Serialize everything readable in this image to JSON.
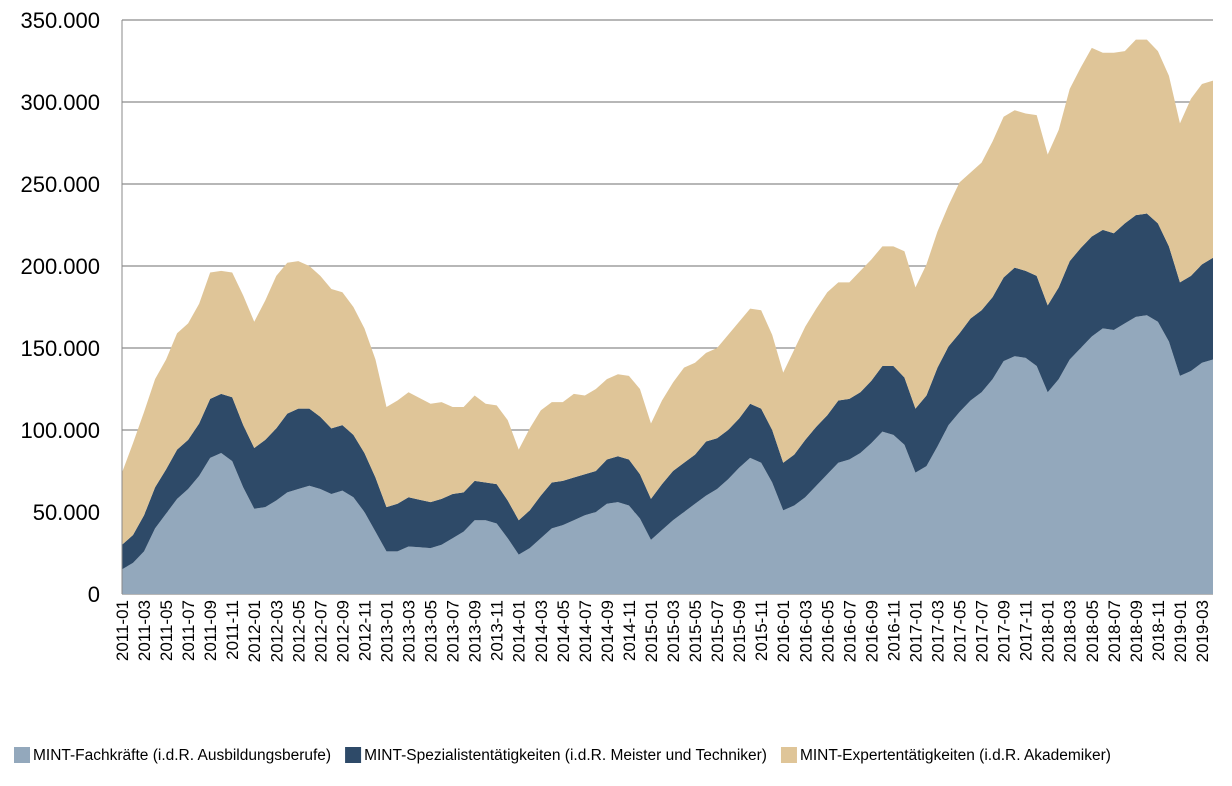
{
  "chart_data": {
    "type": "area",
    "stacked": true,
    "ylim": [
      0,
      350000
    ],
    "yticks": [
      0,
      50000,
      100000,
      150000,
      200000,
      250000,
      300000,
      350000
    ],
    "ytick_labels": [
      "0",
      "50.000",
      "100.000",
      "150.000",
      "200.000",
      "250.000",
      "300.000",
      "350.000"
    ],
    "grid": true,
    "legend": "bottom",
    "x": [
      "2011-01",
      "2011-02",
      "2011-03",
      "2011-04",
      "2011-05",
      "2011-06",
      "2011-07",
      "2011-08",
      "2011-09",
      "2011-10",
      "2011-11",
      "2011-12",
      "2012-01",
      "2012-02",
      "2012-03",
      "2012-04",
      "2012-05",
      "2012-06",
      "2012-07",
      "2012-08",
      "2012-09",
      "2012-10",
      "2012-11",
      "2012-12",
      "2013-01",
      "2013-02",
      "2013-03",
      "2013-04",
      "2013-05",
      "2013-06",
      "2013-07",
      "2013-08",
      "2013-09",
      "2013-10",
      "2013-11",
      "2013-12",
      "2014-01",
      "2014-02",
      "2014-03",
      "2014-04",
      "2014-05",
      "2014-06",
      "2014-07",
      "2014-08",
      "2014-09",
      "2014-10",
      "2014-11",
      "2014-12",
      "2015-01",
      "2015-02",
      "2015-03",
      "2015-04",
      "2015-05",
      "2015-06",
      "2015-07",
      "2015-08",
      "2015-09",
      "2015-10",
      "2015-11",
      "2015-12",
      "2016-01",
      "2016-02",
      "2016-03",
      "2016-04",
      "2016-05",
      "2016-06",
      "2016-07",
      "2016-08",
      "2016-09",
      "2016-10",
      "2016-11",
      "2016-12",
      "2017-01",
      "2017-02",
      "2017-03",
      "2017-04",
      "2017-05",
      "2017-06",
      "2017-07",
      "2017-08",
      "2017-09",
      "2017-10",
      "2017-11",
      "2017-12",
      "2018-01",
      "2018-02",
      "2018-03",
      "2018-04",
      "2018-05",
      "2018-06",
      "2018-07",
      "2018-08",
      "2018-09",
      "2018-10",
      "2018-11",
      "2018-12",
      "2019-01",
      "2019-02",
      "2019-03",
      "2019-04"
    ],
    "xtick_labels": [
      "2011-01",
      "2011-03",
      "2011-05",
      "2011-07",
      "2011-09",
      "2011-11",
      "2012-01",
      "2012-03",
      "2012-05",
      "2012-07",
      "2012-09",
      "2012-11",
      "2013-01",
      "2013-03",
      "2013-05",
      "2013-07",
      "2013-09",
      "2013-11",
      "2014-01",
      "2014-03",
      "2014-05",
      "2014-07",
      "2014-09",
      "2014-11",
      "2015-01",
      "2015-03",
      "2015-05",
      "2015-07",
      "2015-09",
      "2015-11",
      "2016-01",
      "2016-03",
      "2016-05",
      "2016-07",
      "2016-09",
      "2016-11",
      "2017-01",
      "2017-03",
      "2017-05",
      "2017-07",
      "2017-09",
      "2017-11",
      "2018-01",
      "2018-03",
      "2018-05",
      "2018-07",
      "2018-09",
      "2018-11",
      "2019-01",
      "2019-03"
    ],
    "series": [
      {
        "name": "MINT-Fachkräfte (i.d.R. Ausbildungsberufe)",
        "color": "#93a8bc",
        "values": [
          15000,
          19000,
          26000,
          40000,
          49000,
          58000,
          64000,
          72000,
          83000,
          86000,
          81000,
          65000,
          52000,
          53000,
          57000,
          62000,
          64000,
          66000,
          64000,
          61000,
          63000,
          59000,
          50000,
          38000,
          26000,
          26000,
          29000,
          28500,
          28000,
          30000,
          34000,
          38000,
          45000,
          45000,
          43000,
          34000,
          24000,
          28000,
          34000,
          40000,
          42000,
          45000,
          48000,
          50000,
          55000,
          56000,
          54000,
          46000,
          33000,
          39000,
          45000,
          50000,
          55000,
          60000,
          64000,
          70000,
          77000,
          83000,
          80000,
          68000,
          51000,
          54000,
          59000,
          66000,
          73000,
          80000,
          82000,
          86000,
          92000,
          99000,
          97000,
          91000,
          74000,
          78000,
          90000,
          103000,
          111000,
          118000,
          123000,
          131000,
          142000,
          145000,
          144000,
          139000,
          123000,
          131000,
          143000,
          150000,
          157000,
          162000,
          161000,
          165000,
          169000,
          170000,
          166000,
          154000,
          133000,
          136000,
          141000,
          143000
        ]
      },
      {
        "name": "MINT-Spezialistentätigkeiten (i.d.R. Meister und Techniker)",
        "color": "#2e4a68",
        "values": [
          15000,
          17000,
          22000,
          25000,
          27000,
          30000,
          30000,
          32000,
          36000,
          36000,
          39000,
          38000,
          37000,
          41000,
          44000,
          48000,
          49000,
          47000,
          44000,
          40000,
          40000,
          38000,
          36000,
          33000,
          27000,
          29000,
          30000,
          29000,
          28000,
          28000,
          27000,
          24000,
          24000,
          23000,
          24000,
          23000,
          21000,
          23000,
          26000,
          28000,
          27000,
          26000,
          25000,
          25000,
          27000,
          28000,
          28000,
          27000,
          25000,
          28000,
          30000,
          30000,
          30000,
          33000,
          31000,
          30000,
          30000,
          33000,
          33000,
          32000,
          29000,
          31000,
          35000,
          36000,
          36000,
          38000,
          37000,
          37000,
          38000,
          40000,
          42000,
          41000,
          39000,
          43000,
          48000,
          48000,
          48000,
          50000,
          50000,
          50000,
          51000,
          54000,
          53000,
          55000,
          53000,
          56000,
          60000,
          61000,
          61000,
          60000,
          59000,
          61000,
          62000,
          62000,
          60000,
          58000,
          57000,
          58000,
          60000,
          62000
        ]
      },
      {
        "name": "MINT-Expertentätigkeiten (i.d.R. Akademiker)",
        "color": "#dfc598",
        "values": [
          44000,
          56000,
          63000,
          66000,
          67000,
          71000,
          71000,
          73000,
          77000,
          75000,
          76000,
          79000,
          77000,
          85000,
          93000,
          92000,
          90000,
          87000,
          86000,
          85000,
          81000,
          78000,
          76000,
          72000,
          61000,
          63000,
          64000,
          62000,
          60000,
          59000,
          53000,
          52000,
          52000,
          48000,
          48000,
          49000,
          43000,
          50000,
          52000,
          49000,
          48000,
          51000,
          48000,
          50000,
          49000,
          50000,
          51000,
          52000,
          46000,
          51000,
          54000,
          58000,
          56000,
          54000,
          55000,
          58000,
          59000,
          58000,
          60000,
          58000,
          55000,
          64000,
          69000,
          72000,
          75000,
          72000,
          71000,
          74000,
          74000,
          73000,
          73000,
          77000,
          74000,
          80000,
          83000,
          86000,
          92000,
          89000,
          90000,
          95000,
          98000,
          96000,
          96000,
          98000,
          92000,
          96000,
          105000,
          110000,
          115000,
          108000,
          110000,
          105000,
          107000,
          106000,
          105000,
          104000,
          97000,
          108000,
          110000,
          108000
        ]
      }
    ]
  }
}
